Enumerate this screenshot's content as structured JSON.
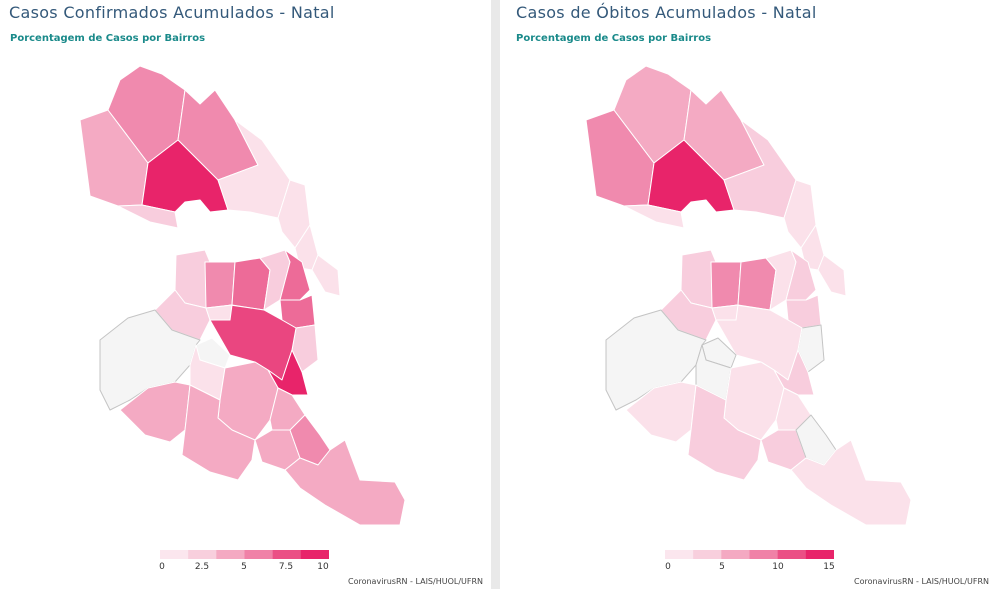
{
  "panels": [
    {
      "title": "Casos Confirmados Acumulados - Natal",
      "subtitle": "Porcentagem de Casos por Bairros",
      "legend": {
        "colors": [
          "#fbe6ee",
          "#f8cfdd",
          "#f4a9c2",
          "#f081a7",
          "#eb4f85",
          "#e8246a"
        ],
        "ticks": [
          "0",
          "2.5",
          "5",
          "7.5",
          "10"
        ]
      },
      "credit": "CoronavirusRN - LAIS/HUOL/UFRN"
    },
    {
      "title": "Casos de Óbitos Acumulados - Natal",
      "subtitle": "Porcentagem de Casos por Bairros",
      "legend": {
        "colors": [
          "#fbe6ee",
          "#f8cfdd",
          "#f4a9c2",
          "#f081a7",
          "#eb4f85",
          "#e8246a"
        ],
        "ticks": [
          "0",
          "5",
          "10",
          "15"
        ]
      },
      "credit": "CoronavirusRN - LAIS/HUOL/UFRN"
    }
  ],
  "palette": {
    "c0": "#f5f5f5",
    "c1": "#fbe1ea",
    "c2": "#f8cddd",
    "c3": "#f4aac3",
    "c4": "#f08aae",
    "c5": "#ed6b98",
    "c6": "#ea4680",
    "c7": "#e8246a"
  }
}
